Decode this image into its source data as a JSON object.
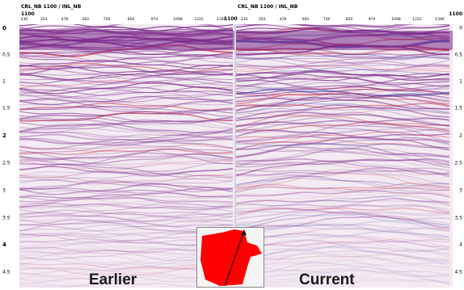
{
  "left_panel": {
    "header": "CRL_NB 1100   / INL_NB",
    "line_id": "1100",
    "ticks": [
      "230",
      "354",
      "478",
      "602",
      "726",
      "850",
      "974",
      "1098",
      "1222",
      "1346"
    ],
    "label": "Earlier"
  },
  "right_panel": {
    "header": "CRL_NB 1100   / INL_NB",
    "line_id_left": "1100",
    "line_id_right": "1100",
    "ticks": [
      "230",
      "354",
      "478",
      "602",
      "726",
      "850",
      "974",
      "1098",
      "1222",
      "1346"
    ],
    "label": "Current"
  },
  "time_axis": [
    "0",
    "0.5",
    "1",
    "1.5",
    "2",
    "2.5",
    "3",
    "3.5",
    "4",
    "4.5"
  ],
  "time_axis_right": [
    "0",
    "0.5",
    "1",
    "1.5",
    "2",
    "2.5",
    "3",
    "3.5",
    "4",
    "4.5"
  ],
  "colors": {
    "background": "#f3eaf2",
    "trace_purple": "#7a2a8a",
    "trace_red": "#c4213a",
    "trace_blue": "#2b3fa8",
    "inset_shape": "#ff0000",
    "inset_line": "#1a1a1a"
  },
  "inset": {
    "icon": "location-map-icon"
  }
}
